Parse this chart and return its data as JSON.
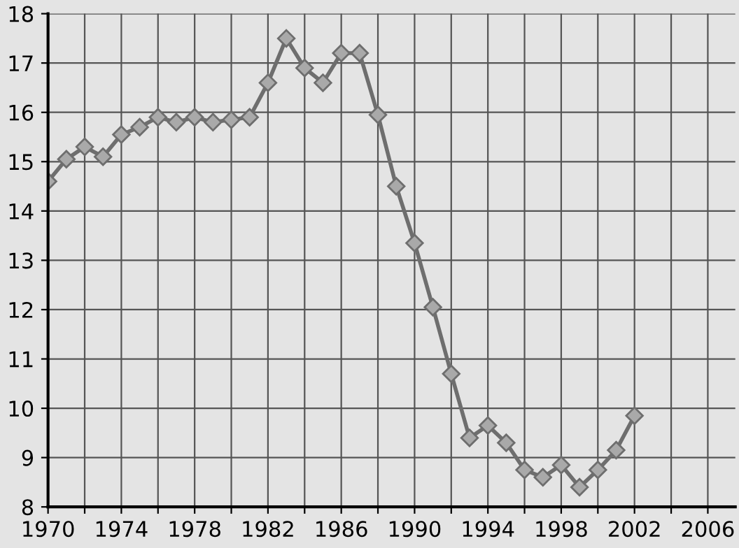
{
  "chart_data": {
    "type": "line",
    "x": [
      1970,
      1971,
      1972,
      1973,
      1974,
      1975,
      1976,
      1977,
      1978,
      1979,
      1980,
      1981,
      1982,
      1983,
      1984,
      1985,
      1986,
      1987,
      1988,
      1989,
      1990,
      1991,
      1992,
      1993,
      1994,
      1995,
      1996,
      1997,
      1998,
      1999,
      2000,
      2001,
      2002
    ],
    "series": [
      {
        "color": "#6e6e6e",
        "values": [
          14.6,
          15.05,
          15.3,
          15.1,
          15.55,
          15.7,
          15.9,
          15.8,
          15.9,
          15.8,
          15.85,
          15.9,
          16.6,
          17.5,
          16.9,
          16.6,
          17.2,
          17.2,
          15.95,
          14.5,
          13.35,
          12.05,
          10.7,
          9.4,
          9.65,
          9.3,
          8.75,
          8.6,
          8.85,
          8.4,
          8.75,
          9.15,
          9.85
        ]
      }
    ],
    "xlim": [
      1970,
      2007.5
    ],
    "xticks": [
      1970,
      {
        "value": 1972,
        "label": null
      },
      1974,
      {
        "value": 1976,
        "label": null
      },
      1978,
      {
        "value": 1980,
        "label": null
      },
      1982,
      {
        "value": 1984,
        "label": null
      },
      1986,
      {
        "value": 1988,
        "label": null
      },
      1990,
      {
        "value": 1992,
        "label": null
      },
      1994,
      {
        "value": 1996,
        "label": null
      },
      1998,
      {
        "value": 2000,
        "label": null
      },
      2002,
      {
        "value": 2004,
        "label": null
      },
      2006
    ],
    "ylim": [
      8,
      18
    ],
    "yticks": [
      8,
      9,
      10,
      11,
      12,
      13,
      14,
      15,
      16,
      17,
      18
    ],
    "grid": true,
    "marker": "diamond",
    "line_style": "solid",
    "legend": false
  }
}
